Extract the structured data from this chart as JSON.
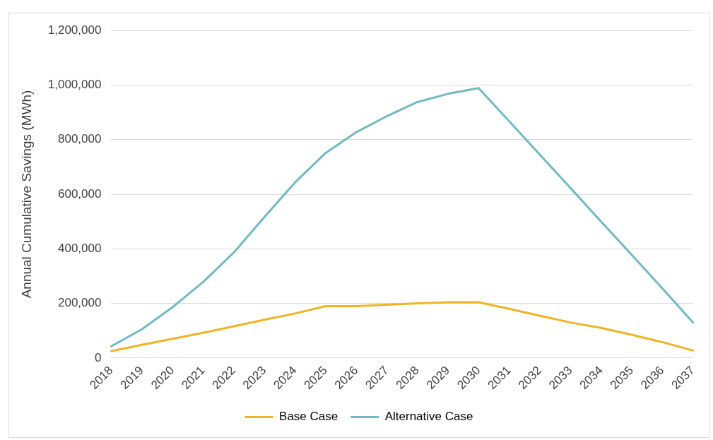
{
  "chart_data": {
    "type": "line",
    "ylabel": "Annual Cumulative Savings (MWh)",
    "categories": [
      "2018",
      "2019",
      "2020",
      "2021",
      "2022",
      "2023",
      "2024",
      "2025",
      "2026",
      "2027",
      "2028",
      "2029",
      "2030",
      "2031",
      "2032",
      "2033",
      "2034",
      "2035",
      "2036",
      "2037"
    ],
    "series": [
      {
        "name": "Base Case",
        "color": "#f0b323",
        "values": [
          25000,
          48000,
          70000,
          92000,
          116000,
          140000,
          163000,
          190000,
          190000,
          195000,
          200000,
          204000,
          204000,
          180000,
          155000,
          130000,
          110000,
          85000,
          58000,
          27000
        ]
      },
      {
        "name": "Alternative Case",
        "color": "#74b8c4",
        "values": [
          43000,
          105000,
          186000,
          278000,
          386000,
          516000,
          643000,
          751000,
          827000,
          886000,
          938000,
          968000,
          989000,
          867000,
          745000,
          623000,
          500000,
          378000,
          255000,
          130000
        ]
      }
    ],
    "ylim": [
      0,
      1200000
    ],
    "yticks": [
      0,
      {
        "value": 200000,
        "label": "200,000"
      },
      {
        "value": 400000,
        "label": "400,000"
      },
      {
        "value": 600000,
        "label": "600,000"
      },
      {
        "value": 800000,
        "label": "800,000"
      },
      {
        "value": 1000000,
        "label": "1,000,000"
      },
      {
        "value": 1200000,
        "label": "1,200,000"
      }
    ],
    "grid": "y",
    "legend": "bottom",
    "marker": "none",
    "line_style": "solid"
  }
}
